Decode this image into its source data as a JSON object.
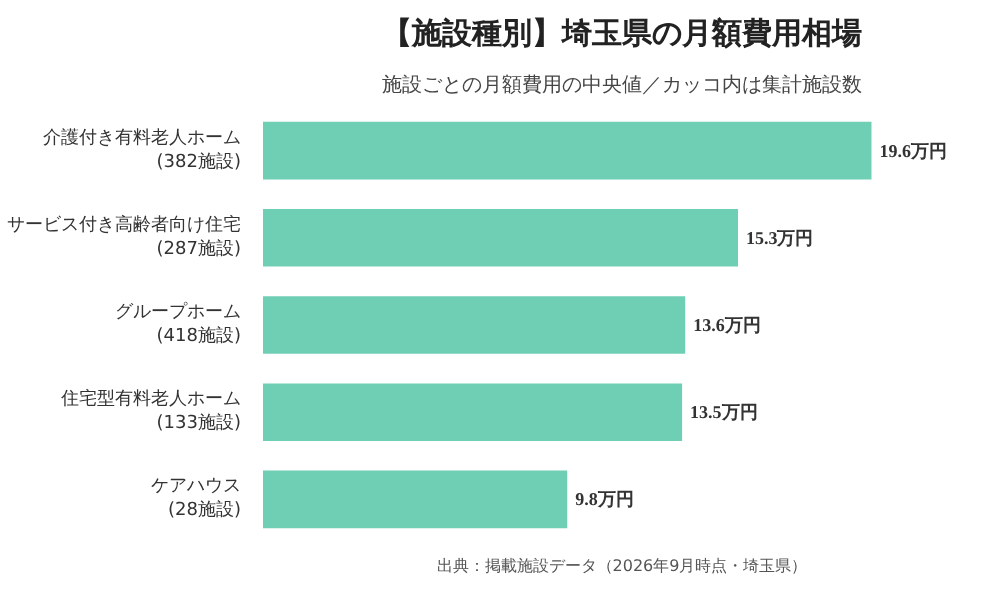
{
  "chart_data": {
    "type": "bar",
    "orientation": "horizontal",
    "title": "【施設種別】埼玉県の月額費用相場",
    "subtitle": "施設ごとの月額費用の中央値／カッコ内は集計施設数",
    "categories": [
      "介護付き有料老人ホーム\n(382施設)",
      "サービス付き高齢者向け住宅\n(287施設)",
      "グループホーム\n(418施設)",
      "住宅型有料老人ホーム\n(133施設)",
      "ケアハウス\n(28施設)"
    ],
    "values": [
      19.6,
      15.3,
      13.6,
      13.5,
      9.8
    ],
    "value_labels": [
      "19.6万円",
      "15.3万円",
      "13.6万円",
      "13.5万円",
      "9.8万円"
    ],
    "color": "#6fcfb4",
    "grid": false,
    "annotations": [
      "出典：掲載施設データ（2026年9月時点・埼玉県）"
    ]
  }
}
